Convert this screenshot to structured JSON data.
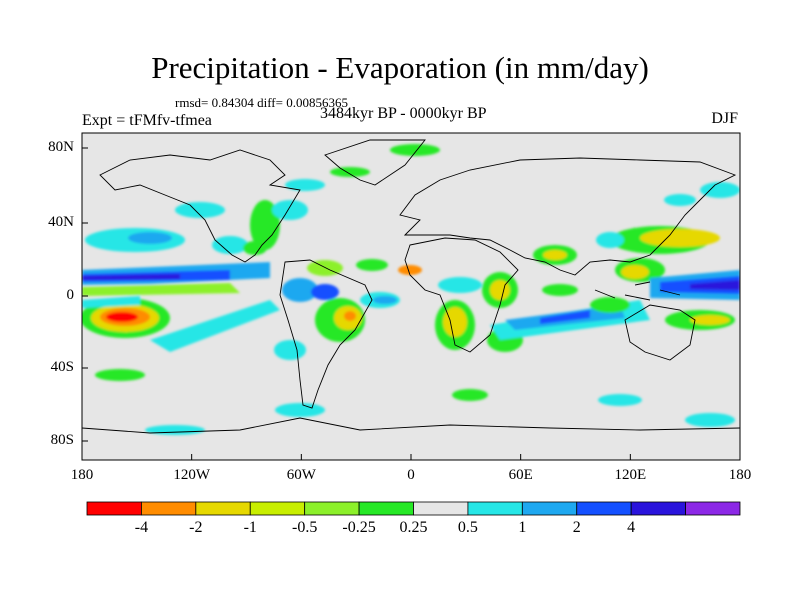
{
  "title": "Precipitation - Evaporation (in mm/day)",
  "stats": "rmsd= 0.84304 diff= 0.00856365",
  "experiment": "Expt = tFMfv-tfmea",
  "period": "3484kyr BP - 0000kyr BP",
  "season": "DJF",
  "y_ticks": [
    "80N",
    "40N",
    "0",
    "40S",
    "80S"
  ],
  "x_ticks": [
    "180",
    "120W",
    "60W",
    "0",
    "60E",
    "120E",
    "180"
  ],
  "colorbar": {
    "colors": [
      "#ff0000",
      "#ff8c00",
      "#e6d800",
      "#c8ee00",
      "#8cf02a",
      "#26e826",
      "#e6e6e6",
      "#26e6e6",
      "#1ea8f0",
      "#1450ff",
      "#2a14dc",
      "#8c28e6"
    ],
    "labels": [
      "-4",
      "-2",
      "-1",
      "-0.5",
      "-0.25",
      "0.25",
      "0.5",
      "1",
      "2",
      "4"
    ]
  },
  "map_background": "#e6e6e6"
}
